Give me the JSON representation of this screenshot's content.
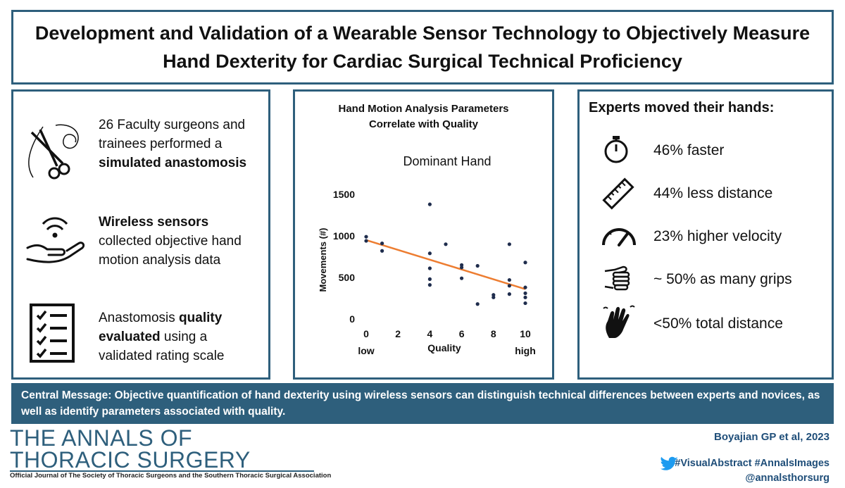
{
  "title": {
    "line1": "Development and Validation of a Wearable Sensor Technology to Objectively Measure",
    "line2": "Hand Dexterity for Cardiac Surgical Technical Proficiency"
  },
  "left_panel": {
    "items": [
      {
        "icon": "surgical-scissors-suture-icon",
        "pre": "26 Faculty surgeons and trainees performed a ",
        "bold": "simulated anastomosis",
        "post": ""
      },
      {
        "icon": "wireless-hand-sensor-icon",
        "pre": "",
        "bold": "Wireless sensors",
        "post": " collected objective hand motion analysis data"
      },
      {
        "icon": "checklist-icon",
        "pre": "Anastomosis ",
        "bold": "quality evaluated",
        "post": " using a validated rating scale"
      }
    ]
  },
  "chart_panel": {
    "title_line1": "Hand Motion Analysis Parameters",
    "title_line2": "Correlate with Quality"
  },
  "chart_data": {
    "type": "scatter",
    "title": "Dominant Hand",
    "xlabel": "Quality",
    "ylabel": "Movements (#)",
    "x_low_label": "low",
    "x_high_label": "high",
    "xlim": [
      0,
      10
    ],
    "ylim": [
      0,
      1500
    ],
    "x_ticks": [
      "0",
      "2",
      "4",
      "6",
      "8",
      "10"
    ],
    "y_ticks": [
      "0",
      "500",
      "1000",
      "1500"
    ],
    "grid": false,
    "trendline": {
      "start": [
        0,
        950
      ],
      "end": [
        10,
        360
      ],
      "color": "#ed7d31"
    },
    "point_color": "#1f2d4d",
    "points": [
      [
        0,
        990
      ],
      [
        0,
        940
      ],
      [
        1,
        910
      ],
      [
        1,
        820
      ],
      [
        4,
        1380
      ],
      [
        4,
        790
      ],
      [
        4,
        610
      ],
      [
        4,
        480
      ],
      [
        4,
        410
      ],
      [
        5,
        900
      ],
      [
        6,
        650
      ],
      [
        6,
        620
      ],
      [
        6,
        490
      ],
      [
        7,
        640
      ],
      [
        7,
        180
      ],
      [
        8,
        290
      ],
      [
        8,
        260
      ],
      [
        9,
        900
      ],
      [
        9,
        470
      ],
      [
        9,
        400
      ],
      [
        9,
        300
      ],
      [
        10,
        680
      ],
      [
        10,
        380
      ],
      [
        10,
        310
      ],
      [
        10,
        260
      ],
      [
        10,
        190
      ]
    ]
  },
  "right_panel": {
    "heading": "Experts moved their hands:",
    "items": [
      {
        "icon": "stopwatch-icon",
        "text": "46% faster"
      },
      {
        "icon": "ruler-icon",
        "text": "44% less distance"
      },
      {
        "icon": "speedometer-icon",
        "text": "23% higher velocity"
      },
      {
        "icon": "grip-fist-icon",
        "text": "~ 50% as many grips"
      },
      {
        "icon": "waving-hands-icon",
        "text": "<50% total distance"
      }
    ]
  },
  "central_message": "Central Message: Objective quantification of hand dexterity using wireless sensors can distinguish technical differences between experts and novices, as well as identify parameters associated with quality.",
  "footer": {
    "journal_line1": "THE ANNALS OF",
    "journal_line2": "THORACIC SURGERY",
    "journal_sub": "Official Journal of The Society of Thoracic Surgeons and the Southern Thoracic Surgical Association",
    "citation": "Boyajian GP et al, 2023",
    "hashtags": "#VisualAbstract #AnnalsImages",
    "handle": "@annalsthorsurg"
  },
  "colors": {
    "accent": "#2e5f7c",
    "trendline": "#ed7d31",
    "points": "#1f2d4d",
    "footer_text": "#1f4e79"
  }
}
